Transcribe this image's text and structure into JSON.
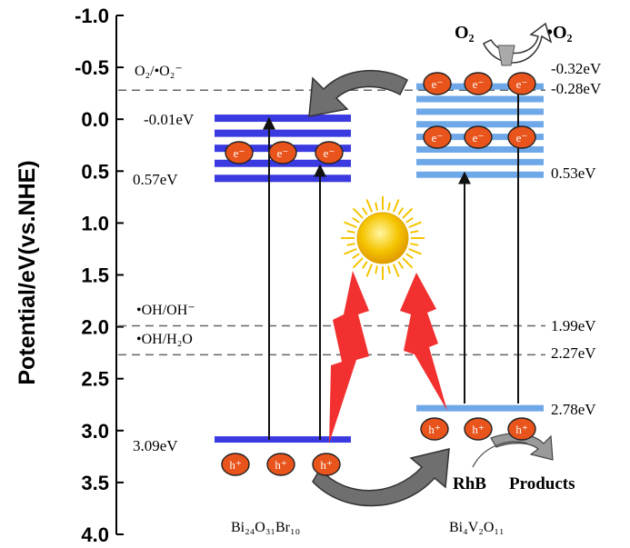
{
  "axis": {
    "ylabel": "Potential/eV(vs.NHE)",
    "ticks": [
      "-1.0",
      "-0.5",
      "0.0",
      "0.5",
      "1.0",
      "1.5",
      "2.0",
      "2.5",
      "3.0",
      "3.5",
      "4.0"
    ],
    "range": [
      -1.0,
      4.0
    ]
  },
  "reference_lines": [
    {
      "label": "O₂/•O₂⁻",
      "value": -0.28
    },
    {
      "label": "•OH/OH⁻",
      "value": 1.99
    },
    {
      "label": "•OH/H₂O",
      "value": 2.27
    }
  ],
  "left_material": {
    "name": "Bi₂₄O₃₁Br₁₀",
    "cb_top_label": "-0.01eV",
    "cb_bottom_label": "0.57eV",
    "vb_label": "3.09eV",
    "cb_top_value": -0.01,
    "cb_bottom_value": 0.57,
    "vb_value": 3.09,
    "band_color": "#3a3ae0"
  },
  "right_material": {
    "name": "Bi₄V₂O₁₁",
    "cb_top_label": "-0.32eV",
    "cb_top2_label": "-0.28eV",
    "cb_bottom_label": "0.53eV",
    "vb_label": "2.78eV",
    "line1_label": "1.99eV",
    "line2_label": "2.27eV",
    "cb_top_value": -0.32,
    "cb_bottom_value": 0.53,
    "vb_value": 2.78,
    "band_color": "#6fa8e8"
  },
  "electron_label": "e⁻",
  "hole_label": "h⁺",
  "oxygen": {
    "reactant": "O₂",
    "product": "•O₂"
  },
  "degradation": {
    "reactant": "RhB",
    "product": "Products"
  },
  "colors": {
    "electron_fill": "#e8541c",
    "lightning": "#f03030",
    "sun": "#f5c400",
    "curved_arrow": "#707070"
  }
}
